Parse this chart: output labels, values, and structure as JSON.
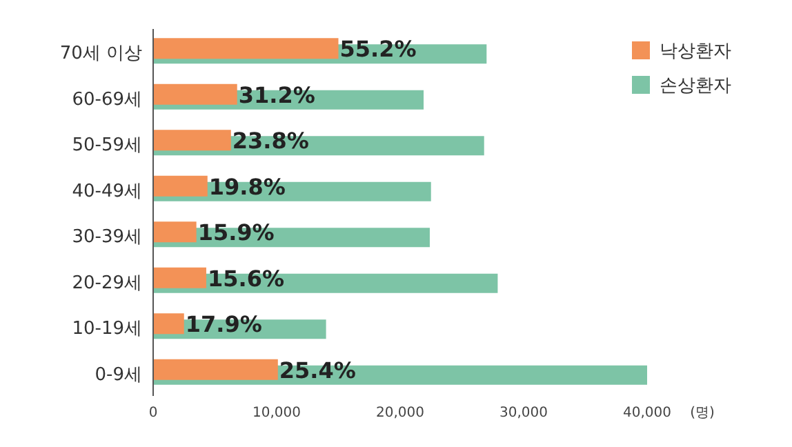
{
  "chart_data": {
    "type": "bar",
    "orientation": "horizontal",
    "categories": [
      "70세 이상",
      "60-69세",
      "50-59세",
      "40-49세",
      "30-39세",
      "20-29세",
      "10-19세",
      "0-9세"
    ],
    "series": [
      {
        "name": "낙상환자",
        "color": "#f39257",
        "values": [
          15000,
          6800,
          6300,
          4400,
          3500,
          4300,
          2500,
          10100
        ]
      },
      {
        "name": "손상환자",
        "color": "#7dc4a6",
        "values": [
          27000,
          21900,
          26800,
          22500,
          22400,
          27900,
          14000,
          40000
        ]
      }
    ],
    "annotations": [
      {
        "text": "55.2%",
        "x": 15000,
        "y": "70세 이상"
      },
      {
        "text": "31.2%",
        "x": 6800,
        "y": "60-69세"
      },
      {
        "text": "23.8%",
        "x": 6300,
        "y": "50-59세"
      },
      {
        "text": "19.8%",
        "x": 4400,
        "y": "40-49세"
      },
      {
        "text": "15.9%",
        "x": 3500,
        "y": "30-39세"
      },
      {
        "text": "15.6%",
        "x": 4300,
        "y": "20-29세"
      },
      {
        "text": "17.9%",
        "x": 2500,
        "y": "10-19세"
      },
      {
        "text": "25.4%",
        "x": 10100,
        "y": "0-9세"
      }
    ],
    "xlim": [
      0,
      40000
    ],
    "xticks": [
      0,
      {
        "value": 10000,
        "label": "10,000"
      },
      {
        "value": 20000,
        "label": "20,000"
      },
      {
        "value": 30000,
        "label": "30,000"
      },
      {
        "value": 40000,
        "label": "40,000"
      }
    ],
    "xlabel": "(명)",
    "legend": "top right",
    "grid": false
  }
}
